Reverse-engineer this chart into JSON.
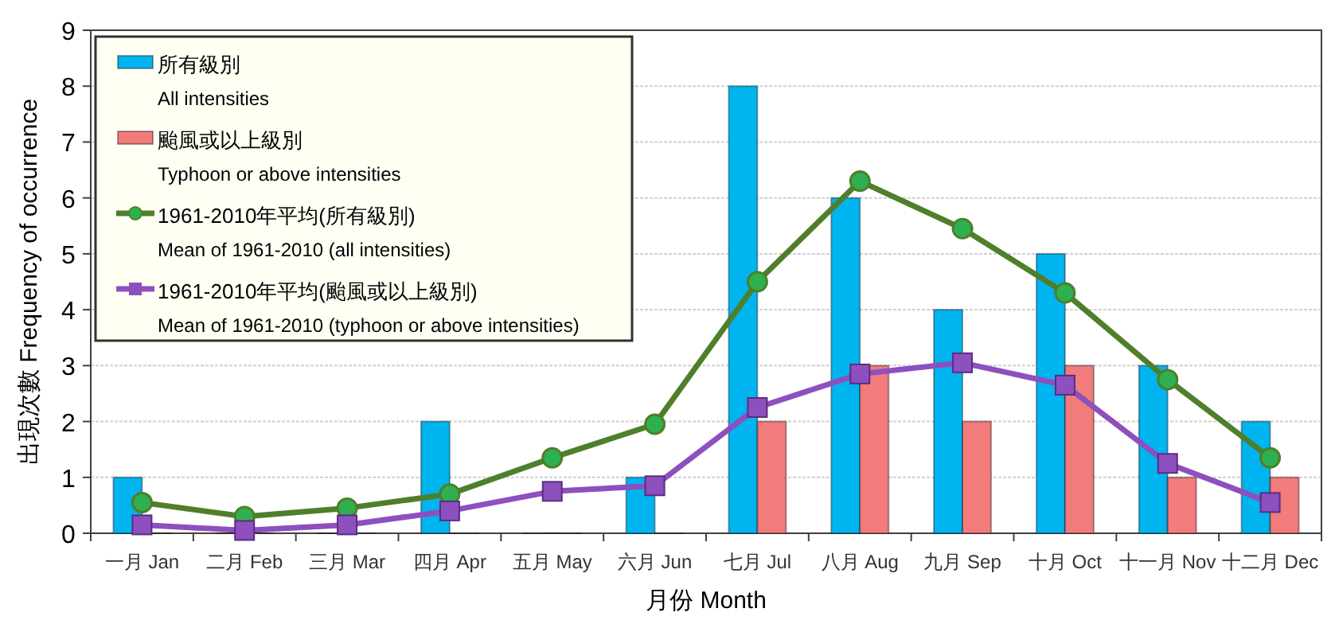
{
  "chart_data": {
    "type": "bar",
    "xlabel": "月份 Month",
    "ylabel": "出現次數  Frequency of occurrence",
    "categories": [
      "一月 Jan",
      "二月 Feb",
      "三月 Mar",
      "四月 Apr",
      "五月 May",
      "六月 Jun",
      "七月 Jul",
      "八月 Aug",
      "九月 Sep",
      "十月 Oct",
      "十一月 Nov",
      "十二月 Dec"
    ],
    "series": [
      {
        "name": "所有級別\nAll intensities",
        "color": "#00b4f0",
        "values": [
          1,
          0,
          0,
          2,
          0,
          1,
          8,
          6,
          4,
          5,
          3,
          2
        ]
      },
      {
        "name": "颱風或以上級別\nTyphoon or above intensities",
        "color": "#f27b7b",
        "values": [
          0,
          0,
          0,
          0,
          0,
          0,
          2,
          3,
          2,
          3,
          1,
          1
        ]
      },
      {
        "name": "1961-2010年平均(所有級別)\nMean of 1961-2010 (all intensities)",
        "type": "line",
        "marker": "circle",
        "color": "#4f7f2a",
        "values": [
          0.55,
          0.3,
          0.45,
          0.7,
          1.35,
          1.95,
          4.5,
          6.3,
          5.45,
          4.3,
          2.75,
          1.35
        ]
      },
      {
        "name": "1961-2010年平均(颱風或以上級別)\nMean of 1961-2010 (typhoon or above intensities)",
        "type": "line",
        "marker": "square",
        "color": "#8e4fbf",
        "values": [
          0.15,
          0.05,
          0.15,
          0.4,
          0.75,
          0.85,
          2.25,
          2.85,
          3.05,
          2.65,
          1.25,
          0.55
        ]
      }
    ],
    "ylim": [
      0,
      9
    ],
    "yticks": [
      0,
      1,
      2,
      3,
      4,
      5,
      6,
      7,
      8,
      9
    ],
    "grid": "y",
    "legend": "top left"
  }
}
